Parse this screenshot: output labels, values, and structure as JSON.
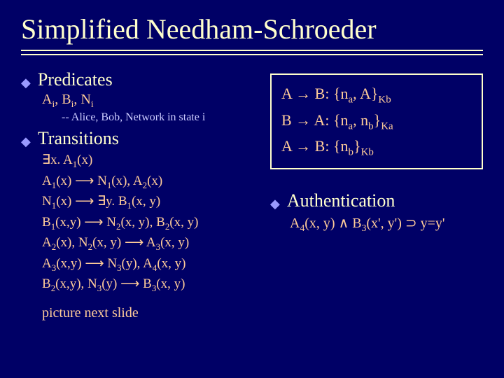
{
  "title": "Simplified Needham-Schroeder",
  "colors": {
    "background": "#000066",
    "title_text": "#ffffcc",
    "bullet_diamond": "#9999ff",
    "body_text": "#ffcc99",
    "comment_text": "#ccccff",
    "box_border": "#ffffcc"
  },
  "left": {
    "predicates": {
      "heading": "Predicates",
      "symbols_html": "A<sub>i</sub>, B<sub>i</sub>, N<sub>i</sub>",
      "comment": "-- Alice, Bob, Network in state i"
    },
    "transitions": {
      "heading": "Transitions",
      "lines_html": [
        "∃x. A<sub>1</sub>(x)",
        "A<sub>1</sub>(x) <span class='arrow'>⟶</span> N<sub>1</sub>(x), A<sub>2</sub>(x)",
        "N<sub>1</sub>(x) <span class='arrow'>⟶</span> ∃y. B<sub>1</sub>(x, y)",
        "B<sub>1</sub>(x,y) <span class='arrow'>⟶</span> N<sub>2</sub>(x, y), B<sub>2</sub>(x, y)",
        "A<sub>2</sub>(x), N<sub>2</sub>(x, y) <span class='arrow'>⟶</span> A<sub>3</sub>(x, y)",
        "A<sub>3</sub>(x,y) <span class='arrow'>⟶</span> N<sub>3</sub>(y), A<sub>4</sub>(x, y)",
        "B<sub>2</sub>(x,y), N<sub>3</sub>(y) <span class='arrow'>⟶</span> B<sub>3</sub>(x, y)"
      ]
    },
    "note": "picture next slide"
  },
  "right": {
    "protocol_box_html": [
      "A → B: {n<sub>a</sub>, A}<sub>Kb</sub>",
      "B → A: {n<sub>a</sub>, n<sub>b</sub>}<sub>Ka</sub>",
      "A → B: {n<sub>b</sub>}<sub>Kb</sub>"
    ],
    "authentication": {
      "heading": "Authentication",
      "formula_html": "A<sub>4</sub>(x, y) ∧ B<sub>3</sub>(x', y') ⊃ y=y'"
    }
  }
}
